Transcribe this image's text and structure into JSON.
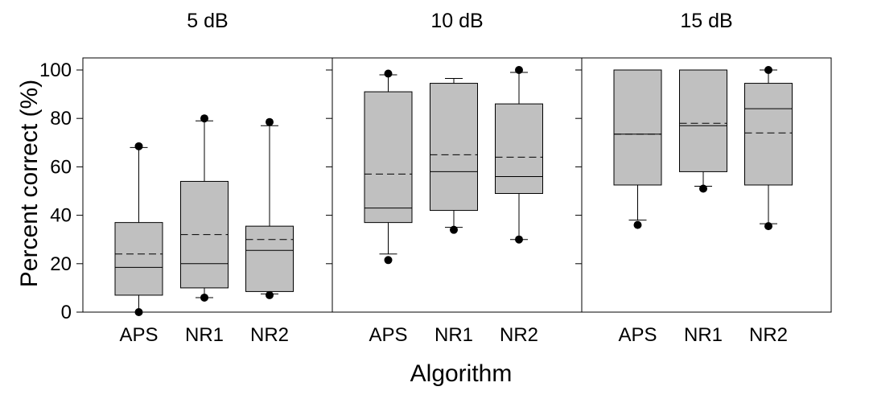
{
  "chart_data": {
    "type": "box",
    "xlabel": "Algorithm",
    "ylabel": "Percent correct (%)",
    "ylim": [
      0,
      100
    ],
    "yticks": [
      0,
      20,
      40,
      60,
      80,
      100
    ],
    "categories": [
      "APS",
      "NR1",
      "NR2"
    ],
    "panels": [
      {
        "title": "5 dB",
        "boxes": [
          {
            "name": "APS",
            "whisker_low": 0,
            "q1": 7,
            "median": 18.5,
            "mean": 24,
            "q3": 37,
            "whisker_high": 68,
            "outliers": [
              0,
              68.5
            ]
          },
          {
            "name": "NR1",
            "whisker_low": 6,
            "q1": 10,
            "median": 20,
            "mean": 32,
            "q3": 54,
            "whisker_high": 79,
            "outliers": [
              6,
              80
            ]
          },
          {
            "name": "NR2",
            "whisker_low": 7.5,
            "q1": 8.5,
            "median": 25.5,
            "mean": 30,
            "q3": 35.5,
            "whisker_high": 77,
            "outliers": [
              7,
              78.5
            ]
          }
        ]
      },
      {
        "title": "10 dB",
        "boxes": [
          {
            "name": "APS",
            "whisker_low": 24,
            "q1": 37,
            "median": 43,
            "mean": 57,
            "q3": 91,
            "whisker_high": 98,
            "outliers": [
              21.5,
              98.5
            ]
          },
          {
            "name": "NR1",
            "whisker_low": 35,
            "q1": 42,
            "median": 58,
            "mean": 65,
            "q3": 94.5,
            "whisker_high": 96.5,
            "outliers": [
              34
            ]
          },
          {
            "name": "NR2",
            "whisker_low": 30,
            "q1": 49,
            "median": 56,
            "mean": 64,
            "q3": 86,
            "whisker_high": 99,
            "outliers": [
              30,
              100
            ]
          }
        ]
      },
      {
        "title": "15 dB",
        "boxes": [
          {
            "name": "APS",
            "whisker_low": 38,
            "q1": 52.5,
            "median": 73.5,
            "mean": 73.5,
            "q3": 100,
            "whisker_high": 100,
            "outliers": [
              36
            ]
          },
          {
            "name": "NR1",
            "whisker_low": 52,
            "q1": 58,
            "median": 77,
            "mean": 78,
            "q3": 100,
            "whisker_high": 100,
            "outliers": [
              51
            ]
          },
          {
            "name": "NR2",
            "whisker_low": 36.5,
            "q1": 52.5,
            "median": 84,
            "mean": 74,
            "q3": 94.5,
            "whisker_high": 100,
            "outliers": [
              35.5,
              100
            ]
          }
        ]
      }
    ],
    "colors": {
      "box_fill": "#c0c0c0",
      "stroke": "#000000",
      "outlier": "#000000"
    }
  }
}
